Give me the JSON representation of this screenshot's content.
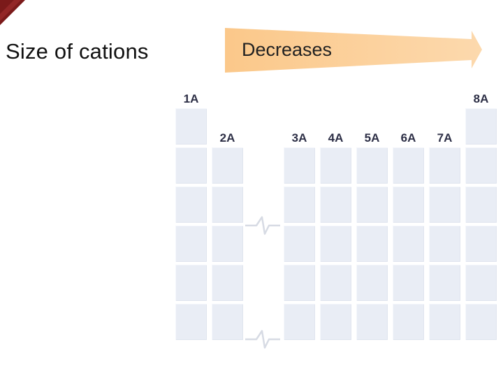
{
  "slide": {
    "title": "Size of cations",
    "arrow_label": "Decreases"
  },
  "colors": {
    "corner_accent": "#7b1a1a",
    "arrow_fill": "#fbcd92",
    "cell_fill": "#e9edf5",
    "group_label": "#2d2f46"
  },
  "periodic_table": {
    "groups": [
      "1A",
      "2A",
      "3A",
      "4A",
      "5A",
      "6A",
      "7A",
      "8A"
    ]
  }
}
